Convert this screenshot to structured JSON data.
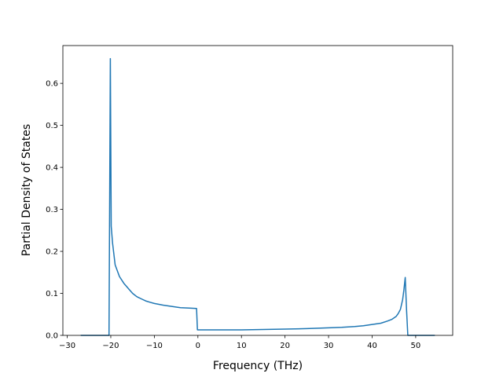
{
  "chart_data": {
    "type": "line",
    "title": "",
    "xlabel": "Frequency (THz)",
    "ylabel": "Partial Density of States",
    "xlim": [
      -31,
      58.5
    ],
    "ylim": [
      0,
      0.69
    ],
    "xticks": [
      -30,
      -20,
      -10,
      0,
      10,
      20,
      30,
      40,
      50
    ],
    "yticks": [
      0.0,
      0.1,
      0.2,
      0.3,
      0.4,
      0.5,
      0.6
    ],
    "ytick_labels": [
      "0.0",
      "0.1",
      "0.2",
      "0.3",
      "0.4",
      "0.5",
      "0.6"
    ],
    "grid": false,
    "legend": "none",
    "series": [
      {
        "color": "#1f77b4",
        "x": [
          -26.9,
          -20.4,
          -20.1,
          -19.9,
          -19.6,
          -19.0,
          -18.0,
          -17.0,
          -16.0,
          -15.0,
          -14.0,
          -13.0,
          -12.0,
          -11.0,
          -10.0,
          -8.0,
          -6.0,
          -4.0,
          -2.0,
          -0.3,
          -0.1,
          0.1,
          5.0,
          10.0,
          15.0,
          20.0,
          25.0,
          30.0,
          33.0,
          36.0,
          38.0,
          40.0,
          42.0,
          43.5,
          44.5,
          45.5,
          46.0,
          46.5,
          47.0,
          47.3,
          47.6,
          47.9,
          48.2,
          54.4
        ],
        "y": [
          0.0,
          0.0,
          0.659,
          0.26,
          0.22,
          0.168,
          0.14,
          0.124,
          0.112,
          0.1,
          0.092,
          0.087,
          0.082,
          0.079,
          0.076,
          0.072,
          0.069,
          0.066,
          0.065,
          0.064,
          0.013,
          0.013,
          0.013,
          0.013,
          0.014,
          0.015,
          0.016,
          0.018,
          0.019,
          0.021,
          0.023,
          0.026,
          0.029,
          0.034,
          0.038,
          0.045,
          0.052,
          0.062,
          0.085,
          0.108,
          0.138,
          0.06,
          0.0,
          0.0
        ]
      }
    ]
  }
}
